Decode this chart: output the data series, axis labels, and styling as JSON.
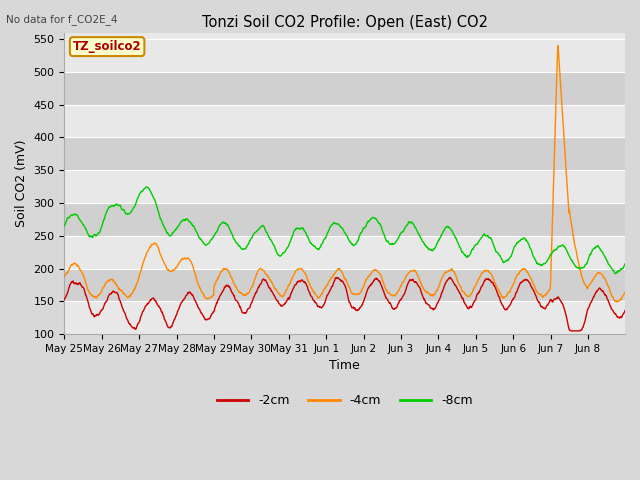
{
  "title": "Tonzi Soil CO2 Profile: Open (East) CO2",
  "subtitle": "No data for f_CO2E_4",
  "xlabel": "Time",
  "ylabel": "Soil CO2 (mV)",
  "ylim": [
    100,
    560
  ],
  "yticks": [
    100,
    150,
    200,
    250,
    300,
    350,
    400,
    450,
    500,
    550
  ],
  "line_colors": {
    "2cm": "#cc0000",
    "4cm": "#ff8800",
    "8cm": "#00cc00"
  },
  "legend_labels": [
    "-2cm",
    "-4cm",
    "-8cm"
  ],
  "legend_colors": [
    "#cc0000",
    "#ff8800",
    "#00cc00"
  ],
  "box_label": "TZ_soilco2",
  "box_facecolor": "#ffffcc",
  "box_edgecolor": "#cc8800",
  "fig_bg": "#d8d8d8",
  "plot_bg_light": "#e8e8e8",
  "plot_bg_dark": "#d0d0d0",
  "n_points": 1500
}
